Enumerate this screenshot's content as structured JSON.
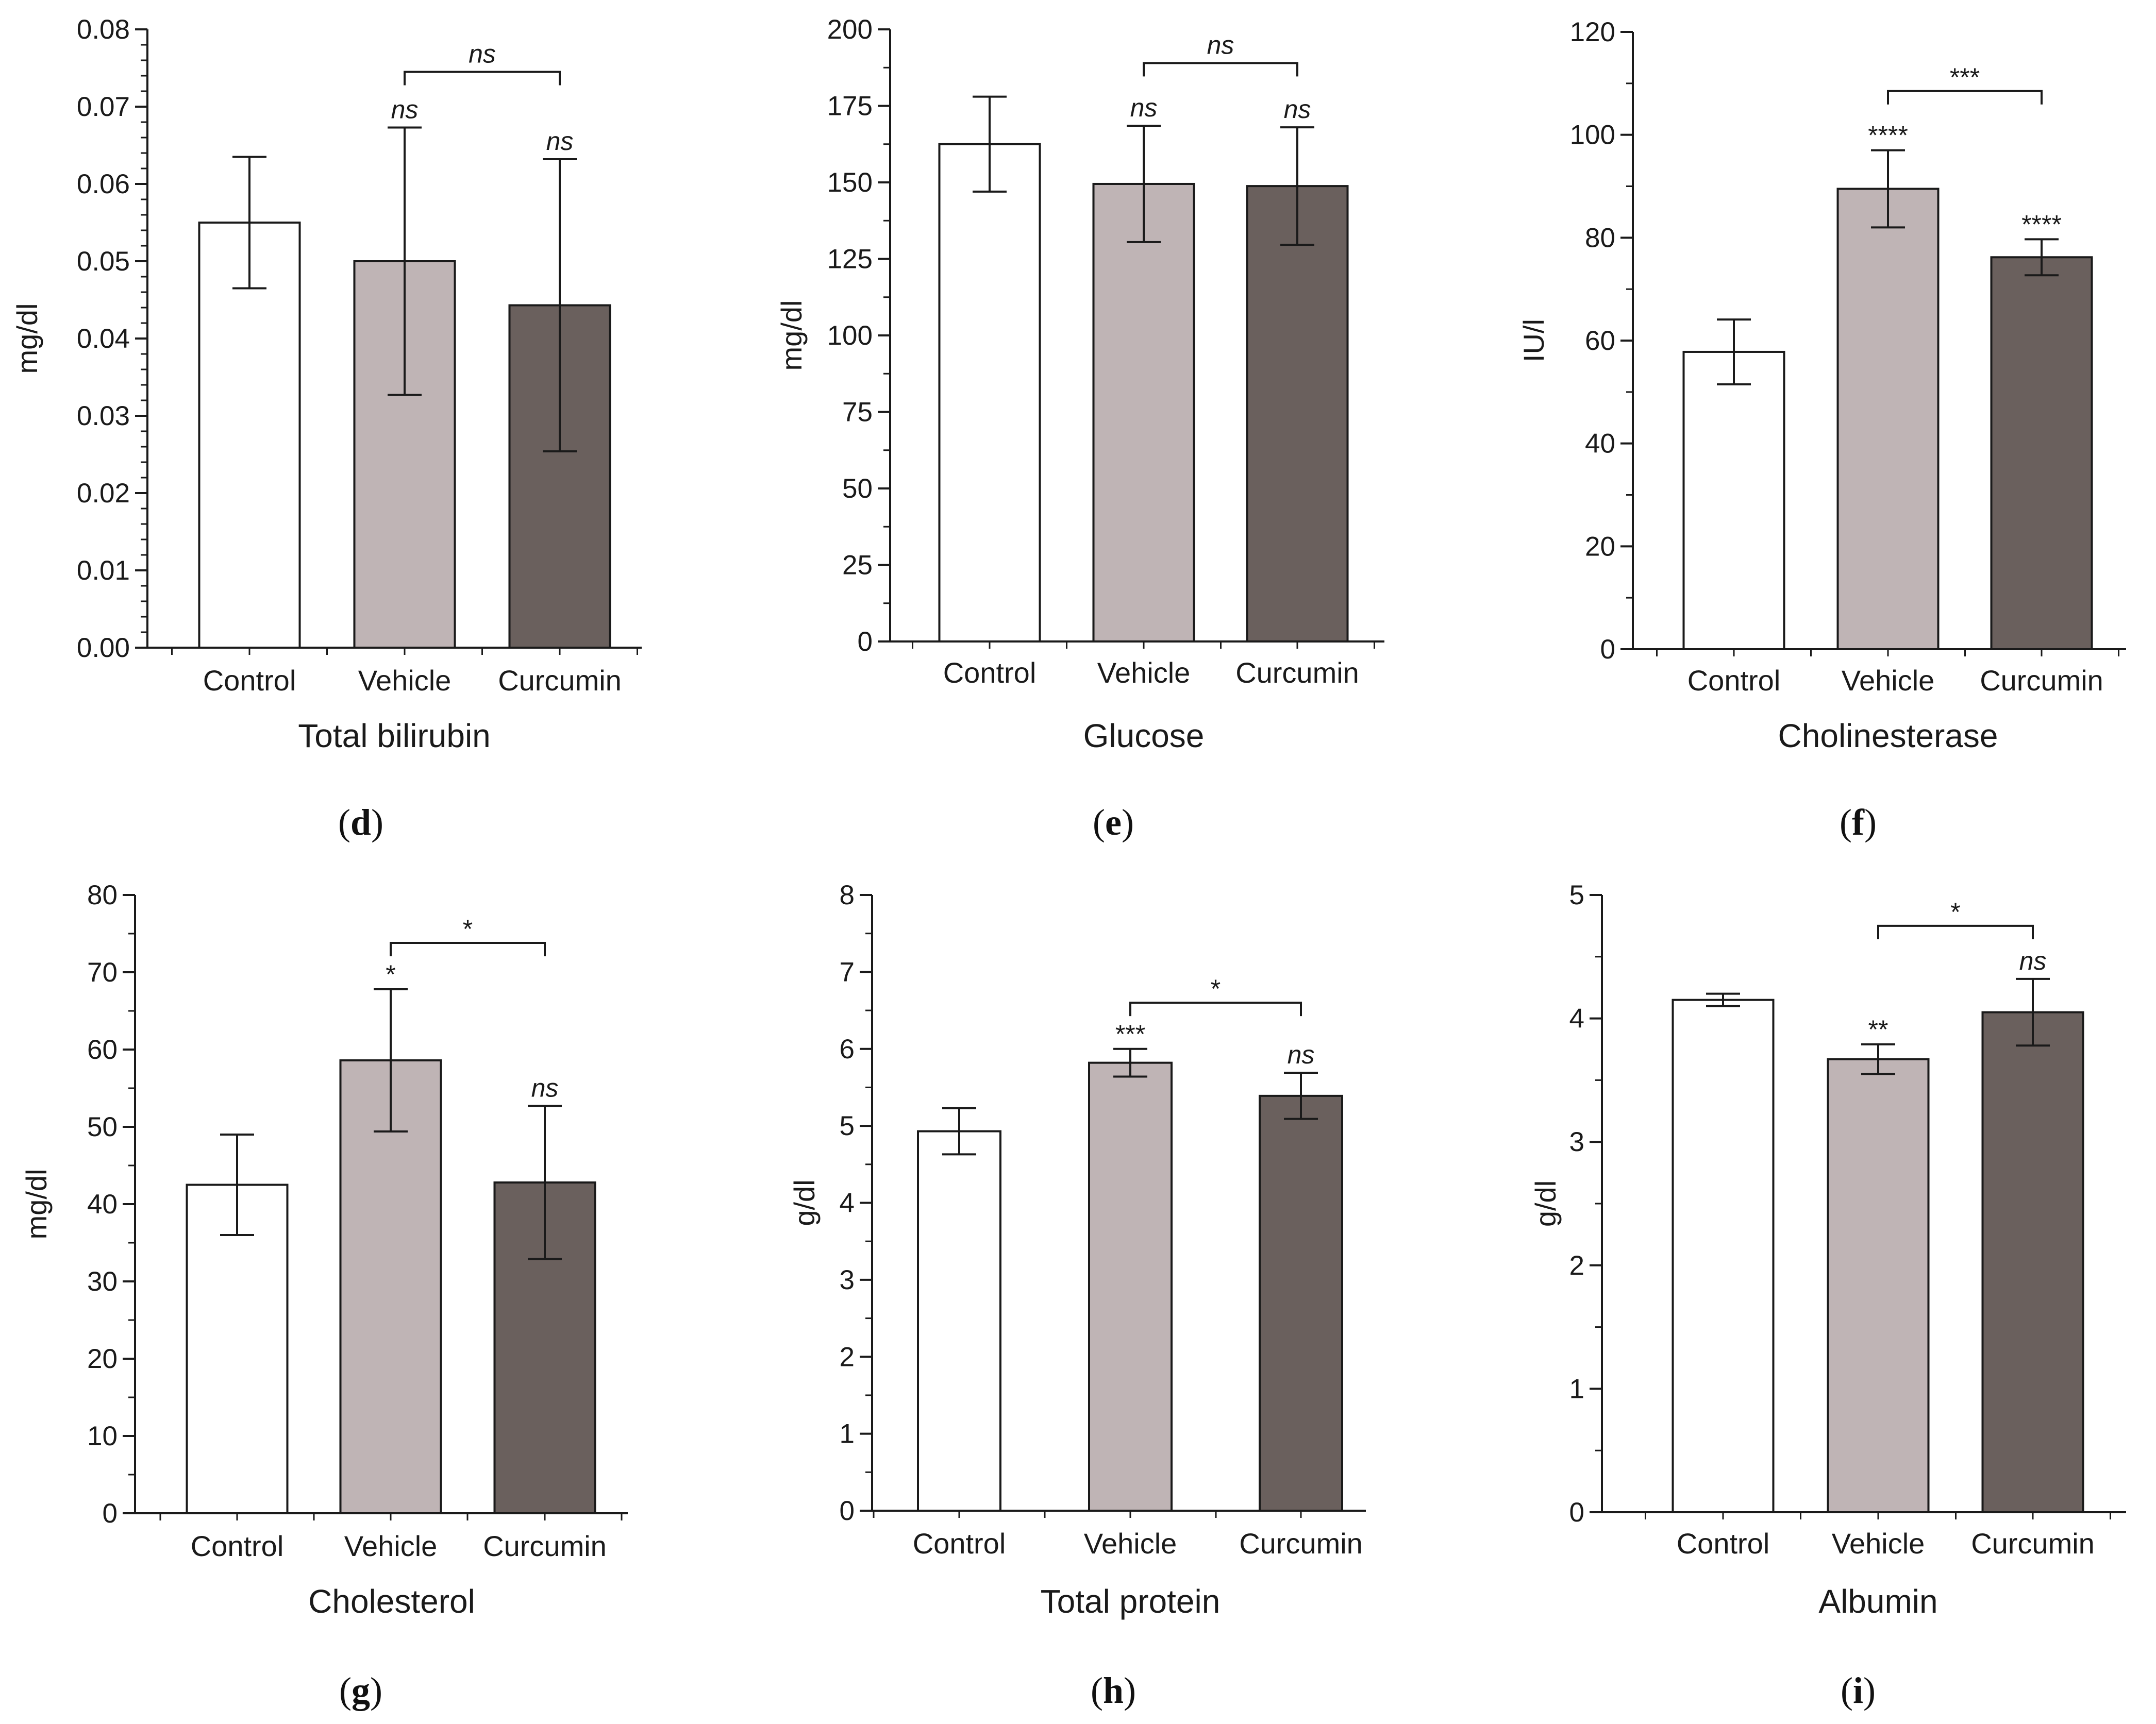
{
  "figure": {
    "background": "#ffffff"
  },
  "colors": {
    "control": "#ffffff",
    "vehicle": "#bfb4b5",
    "curcumin": "#6a605d",
    "stroke": "#1a1a1a"
  },
  "chart_data": [
    {
      "panel": "d",
      "type": "bar",
      "title": "Total bilirubin",
      "ylabel": "mg/dl",
      "xlabel": "",
      "categories": [
        "Control",
        "Vehicle",
        "Curcumin"
      ],
      "values": [
        0.055,
        0.05,
        0.0443
      ],
      "errors": [
        0.0085,
        0.0173,
        0.0189
      ],
      "ylim": [
        0,
        0.08
      ],
      "yticks": [
        0,
        0.01,
        0.02,
        0.03,
        0.04,
        0.05,
        0.06,
        0.07,
        0.08
      ],
      "ytick_labels": [
        "0.00",
        "0.01",
        "0.02",
        "0.03",
        "0.04",
        "0.05",
        "0.06",
        "0.07",
        "0.08"
      ],
      "minor_ticks_per_major": 5,
      "bar_annotations": [
        "",
        "ns",
        "ns"
      ],
      "comparison": {
        "from": 1,
        "to": 2,
        "label": "ns",
        "level": 0.0745
      },
      "grid": false
    },
    {
      "panel": "e",
      "type": "bar",
      "title": "Glucose",
      "ylabel": "mg/dl",
      "xlabel": "",
      "categories": [
        "Control",
        "Vehicle",
        "Curcumin"
      ],
      "values": [
        162.5,
        149.5,
        148.8
      ],
      "errors": [
        15.5,
        19.0,
        19.2
      ],
      "ylim": [
        0,
        200
      ],
      "yticks": [
        0,
        25,
        50,
        75,
        100,
        125,
        150,
        175,
        200
      ],
      "ytick_labels": [
        "0",
        "25",
        "50",
        "75",
        "100",
        "125",
        "150",
        "175",
        "200"
      ],
      "minor_ticks_per_major": 2,
      "bar_annotations": [
        "",
        "ns",
        "ns"
      ],
      "comparison": {
        "from": 1,
        "to": 2,
        "label": "ns",
        "level": 189
      },
      "grid": false
    },
    {
      "panel": "f",
      "type": "bar",
      "title": "Cholinesterase",
      "ylabel": "IU/l",
      "xlabel": "",
      "categories": [
        "Control",
        "Vehicle",
        "Curcumin"
      ],
      "values": [
        57.8,
        89.5,
        76.2
      ],
      "errors": [
        6.3,
        7.5,
        3.5
      ],
      "ylim": [
        0,
        120
      ],
      "yticks": [
        0,
        20,
        40,
        60,
        80,
        100,
        120
      ],
      "ytick_labels": [
        "0",
        "20",
        "40",
        "60",
        "80",
        "100",
        "120"
      ],
      "minor_ticks_per_major": 2,
      "bar_annotations": [
        "",
        "****",
        "****"
      ],
      "comparison": {
        "from": 1,
        "to": 2,
        "label": "***",
        "level": 108.5
      },
      "grid": false
    },
    {
      "panel": "g",
      "type": "bar",
      "title": "Cholesterol",
      "ylabel": "mg/dl",
      "xlabel": "",
      "categories": [
        "Control",
        "Vehicle",
        "Curcumin"
      ],
      "values": [
        42.5,
        58.6,
        42.8
      ],
      "errors": [
        6.5,
        9.2,
        9.9
      ],
      "ylim": [
        0,
        80
      ],
      "yticks": [
        0,
        10,
        20,
        30,
        40,
        50,
        60,
        70,
        80
      ],
      "ytick_labels": [
        "0",
        "10",
        "20",
        "30",
        "40",
        "50",
        "60",
        "70",
        "80"
      ],
      "minor_ticks_per_major": 2,
      "bar_annotations": [
        "",
        "*",
        "ns"
      ],
      "comparison": {
        "from": 1,
        "to": 2,
        "label": "*",
        "level": 73.8
      },
      "grid": false
    },
    {
      "panel": "h",
      "type": "bar",
      "title": "Total protein",
      "ylabel": "g/dl",
      "xlabel": "",
      "categories": [
        "Control",
        "Vehicle",
        "Curcumin"
      ],
      "values": [
        4.93,
        5.82,
        5.39
      ],
      "errors": [
        0.3,
        0.18,
        0.3
      ],
      "ylim": [
        0,
        8
      ],
      "yticks": [
        0,
        1,
        2,
        3,
        4,
        5,
        6,
        7,
        8
      ],
      "ytick_labels": [
        "0",
        "1",
        "2",
        "3",
        "4",
        "5",
        "6",
        "7",
        "8"
      ],
      "minor_ticks_per_major": 2,
      "bar_annotations": [
        "",
        "***",
        "ns"
      ],
      "comparison": {
        "from": 1,
        "to": 2,
        "label": "*",
        "level": 6.6
      },
      "grid": false
    },
    {
      "panel": "i",
      "type": "bar",
      "title": "Albumin",
      "ylabel": "g/dl",
      "xlabel": "",
      "categories": [
        "Control",
        "Vehicle",
        "Curcumin"
      ],
      "values": [
        4.15,
        3.67,
        4.05
      ],
      "errors": [
        0.05,
        0.12,
        0.27
      ],
      "ylim": [
        0,
        5
      ],
      "yticks": [
        0,
        1,
        2,
        3,
        4,
        5
      ],
      "ytick_labels": [
        "0",
        "1",
        "2",
        "3",
        "4",
        "5"
      ],
      "minor_ticks_per_major": 2,
      "bar_annotations": [
        "",
        "**",
        "ns"
      ],
      "comparison": {
        "from": 1,
        "to": 2,
        "label": "*",
        "level": 4.75
      },
      "grid": false
    }
  ]
}
